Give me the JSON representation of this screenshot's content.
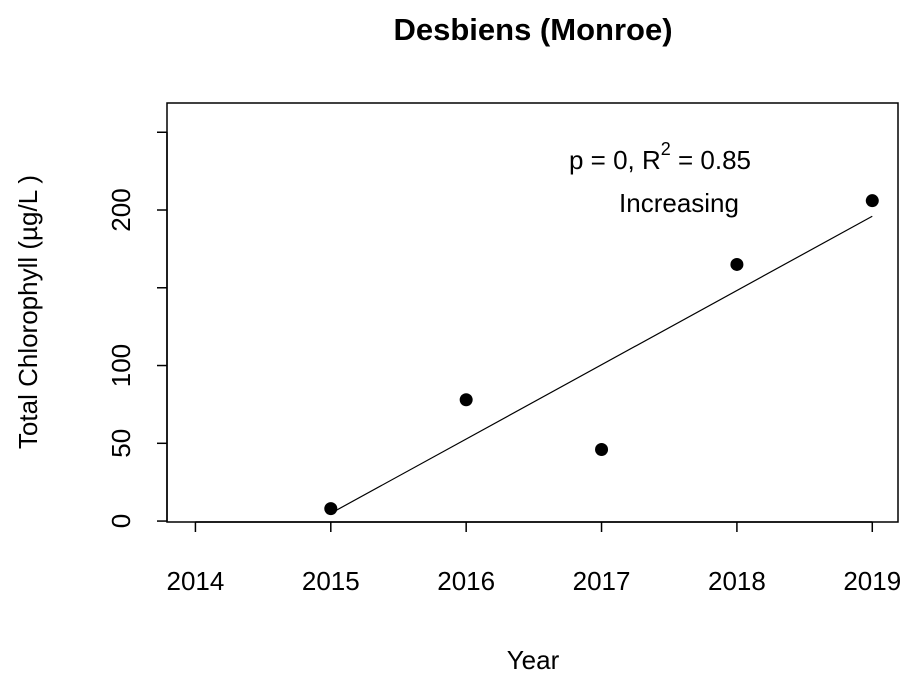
{
  "chart_data": {
    "type": "scatter",
    "title": "Desbiens (Monroe)",
    "x_label": "Year",
    "y_label": "Total Chlorophyll (µg/L )",
    "x": [
      2015,
      2016,
      2017,
      2018,
      2019
    ],
    "values": [
      8,
      78,
      46,
      165,
      206
    ],
    "color": "#000000",
    "trend": {
      "x": [
        2015,
        2019
      ],
      "values": [
        5,
        196
      ]
    },
    "annotation": {
      "text": "p = 0, R",
      "superscript": "2",
      "suffix": " = 0.85",
      "trend_label": "Increasing"
    },
    "xlim": [
      2013.79,
      2019.19
    ],
    "xticks": [
      2014,
      2015,
      2016,
      2017,
      2018,
      2019
    ],
    "ylim": [
      -0.6,
      268.8
    ],
    "yticks": [
      0,
      50,
      100,
      {
        "value": 150,
        "label": null
      },
      200,
      {
        "value": 250,
        "label": null
      }
    ],
    "grid": false
  }
}
